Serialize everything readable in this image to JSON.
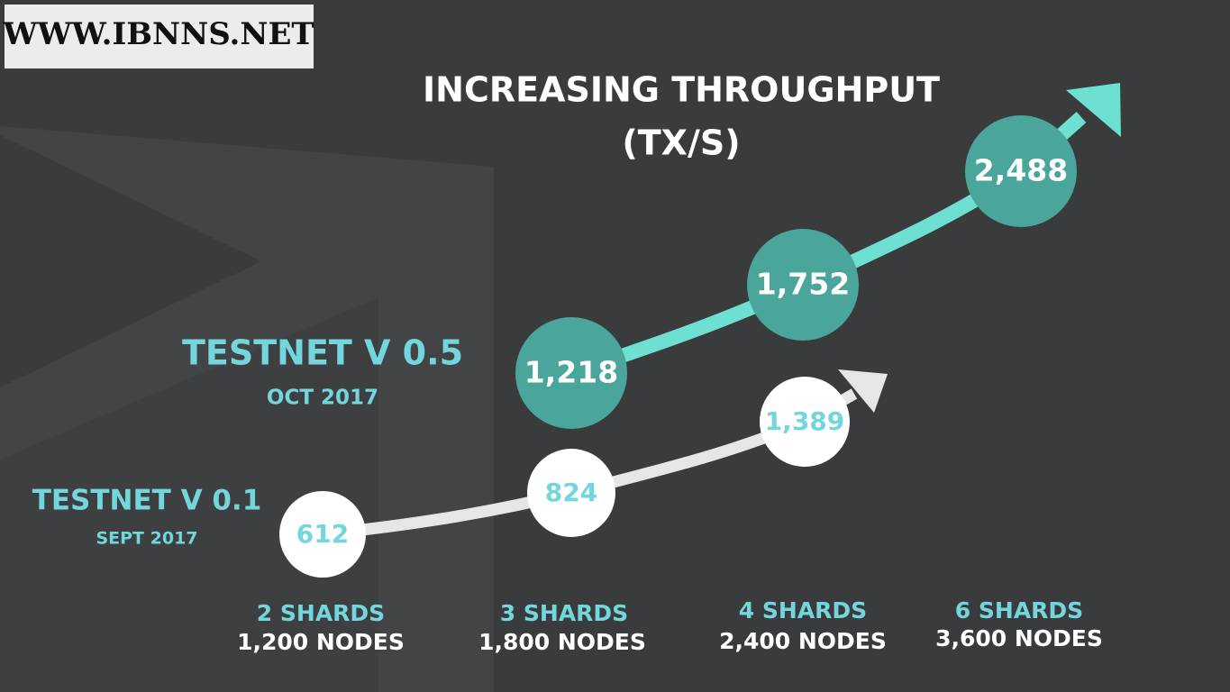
{
  "watermark": "WWW.IBNNS.NET",
  "title": "INCREASING THROUGHPUT",
  "subtitle": "(TX/S)",
  "releases": [
    {
      "name": "TESTNET V 0.1",
      "date": "SEPT 2017",
      "values": [
        "612",
        "824",
        "1,389"
      ]
    },
    {
      "name": "TESTNET V 0.5",
      "date": "OCT 2017",
      "values": [
        "1,218",
        "1,752",
        "2,488"
      ]
    }
  ],
  "configs": [
    {
      "shards": "2 SHARDS",
      "nodes": "1,200 NODES"
    },
    {
      "shards": "3 SHARDS",
      "nodes": "1,800 NODES"
    },
    {
      "shards": "4 SHARDS",
      "nodes": "2,400 NODES"
    },
    {
      "shards": "6 SHARDS",
      "nodes": "3,600 NODES"
    }
  ]
}
